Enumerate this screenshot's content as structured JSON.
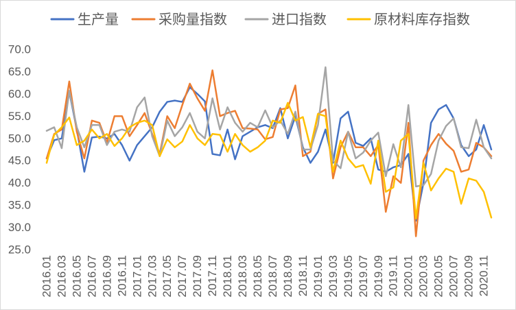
{
  "chart_data": {
    "type": "line",
    "legend_position": "top",
    "grid": false,
    "ylim": [
      25,
      70
    ],
    "y_tick_labels": [
      "70.0",
      "65.0",
      "60.0",
      "55.0",
      "50.0",
      "45.0",
      "40.0",
      "35.0",
      "30.0",
      "25.0"
    ],
    "x_tick_labels": [
      "2016.01",
      "2016.03",
      "2016.05",
      "2016.07",
      "2016.09",
      "2016.11",
      "2017.01",
      "2017.03",
      "2017.05",
      "2017.07",
      "2017.09",
      "2017.11",
      "2018.01",
      "2018.03",
      "2018.05",
      "2018.07",
      "2018.09",
      "2018.11",
      "2019.01",
      "2019.03",
      "2019.05",
      "2019.07",
      "2019.09",
      "2019.11",
      "2020.01",
      "2020.03",
      "2020.05",
      "2020.07",
      "2020.09",
      "2020.11"
    ],
    "series": [
      {
        "name": "生产量",
        "color": "#4472C4",
        "values": [
          45.5,
          49.6,
          50.0,
          60.5,
          52.0,
          42.5,
          50.2,
          50.4,
          50.0,
          51.0,
          48.5,
          45.0,
          48.5,
          50.5,
          52.5,
          56.0,
          58.2,
          58.5,
          58.2,
          61.5,
          60.0,
          58.3,
          46.5,
          46.2,
          52.0,
          45.3,
          50.5,
          51.5,
          52.5,
          53.0,
          52.3,
          56.8,
          50.0,
          55.0,
          48.0,
          44.5,
          47.0,
          52.0,
          44.5,
          54.5,
          56.0,
          49.0,
          48.3,
          50.0,
          43.0,
          42.5,
          43.5,
          44.0,
          46.5,
          31.5,
          40.0,
          53.5,
          56.5,
          57.5,
          54.5,
          48.5,
          46.0,
          47.5,
          53.0,
          47.5
        ]
      },
      {
        "name": "采购量指数",
        "color": "#ED7D31",
        "values": [
          45.5,
          51.0,
          52.0,
          62.8,
          51.5,
          45.5,
          54.0,
          53.5,
          49.0,
          55.0,
          55.0,
          50.5,
          53.0,
          55.7,
          51.0,
          46.5,
          55.0,
          52.3,
          57.5,
          62.3,
          59.0,
          56.2,
          65.3,
          55.0,
          55.7,
          56.2,
          52.3,
          52.2,
          52.0,
          49.8,
          50.3,
          56.5,
          56.8,
          61.9,
          46.0,
          47.0,
          55.5,
          56.5,
          41.0,
          48.0,
          51.5,
          48.0,
          48.0,
          46.0,
          48.5,
          33.5,
          41.5,
          40.0,
          53.5,
          28.0,
          45.0,
          48.5,
          51.0,
          48.8,
          47.2,
          42.5,
          43.0,
          49.0,
          48.0,
          46.0
        ]
      },
      {
        "name": "进口指数",
        "color": "#A5A5A5",
        "values": [
          51.7,
          52.5,
          47.8,
          60.7,
          52.5,
          48.0,
          53.0,
          53.0,
          48.5,
          51.5,
          52.0,
          51.5,
          57.0,
          59.2,
          50.5,
          46.0,
          54.0,
          50.5,
          52.5,
          55.7,
          51.5,
          50.0,
          59.0,
          52.0,
          57.0,
          53.5,
          51.5,
          53.5,
          52.5,
          56.3,
          52.5,
          54.0,
          51.0,
          56.0,
          47.5,
          47.5,
          53.0,
          66.0,
          45.0,
          43.3,
          51.5,
          45.5,
          46.8,
          49.5,
          51.3,
          41.5,
          48.7,
          43.5,
          57.5,
          39.2,
          39.5,
          42.0,
          49.5,
          52.8,
          54.5,
          48.0,
          47.8,
          54.2,
          48.0,
          45.5
        ]
      },
      {
        "name": "原材料库存指数",
        "color": "#FFC000",
        "values": [
          44.5,
          50.8,
          52.5,
          54.7,
          48.5,
          49.5,
          52.0,
          50.0,
          51.0,
          48.3,
          50.0,
          52.5,
          53.5,
          54.0,
          53.0,
          46.0,
          49.8,
          48.0,
          49.3,
          53.0,
          50.0,
          48.5,
          51.0,
          50.8,
          47.0,
          51.0,
          48.5,
          47.0,
          48.0,
          49.5,
          54.0,
          53.5,
          58.0,
          54.0,
          54.8,
          48.0,
          55.5,
          55.0,
          42.5,
          49.5,
          45.5,
          43.5,
          44.0,
          39.8,
          49.5,
          38.0,
          39.0,
          49.5,
          51.0,
          32.0,
          44.5,
          38.3,
          41.0,
          43.2,
          42.5,
          35.3,
          41.0,
          40.5,
          38.0,
          32.2
        ]
      }
    ]
  }
}
